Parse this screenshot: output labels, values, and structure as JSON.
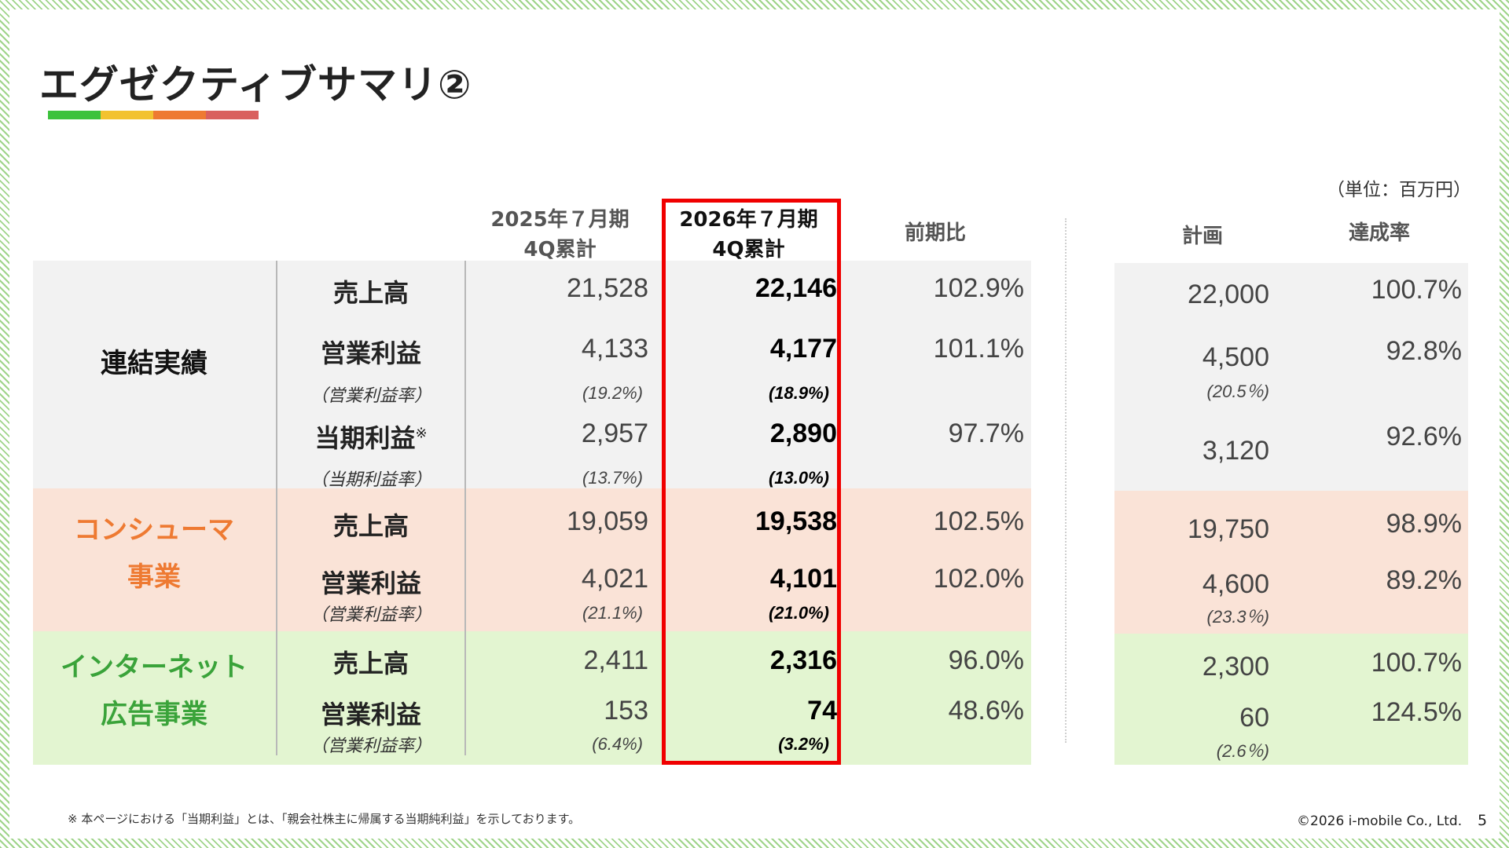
{
  "title": "エグゼクティブサマリ②",
  "title_bar_colors": [
    "#3cc23c",
    "#f2c230",
    "#ee7a32",
    "#d9605e"
  ],
  "unit": "（単位：百万円）",
  "headers": {
    "prev": [
      "2025年７月期",
      "4Q累計"
    ],
    "curr": [
      "2026年７月期",
      "4Q累計"
    ],
    "yoy": "前期比",
    "plan": "計画",
    "achieve": "達成率"
  },
  "colors": {
    "band_consolidated": "#f2f2f2",
    "band_consumer": "#fae3d7",
    "band_internet": "#e3f5d1",
    "seg_consolidated": "#111111",
    "seg_consumer": "#ee7a32",
    "seg_internet": "#3aa33a",
    "highlight_border": "#f00000"
  },
  "segments": {
    "consolidated": [
      "連結実績"
    ],
    "consumer": [
      "コンシューマ",
      "事業"
    ],
    "internet": [
      "インターネット",
      "広告事業"
    ]
  },
  "rows": [
    {
      "item": "売上高",
      "prev": "21,528",
      "curr": "22,146",
      "yoy": "102.9%",
      "plan": "22,000",
      "achieve": "100.7%"
    },
    {
      "item": "営業利益",
      "sub": "（営業利益率）",
      "prev": "4,133",
      "prev_pct": "(19.2%)",
      "curr": "4,177",
      "curr_pct": "(18.9%)",
      "yoy": "101.1%",
      "plan": "4,500",
      "plan_pct": "(20.5％)",
      "achieve": "92.8%"
    },
    {
      "item": "当期利益",
      "item_mark": "※",
      "sub": "（当期利益率）",
      "prev": "2,957",
      "prev_pct": "(13.7%)",
      "curr": "2,890",
      "curr_pct": "(13.0%)",
      "yoy": "97.7%",
      "plan": "3,120",
      "achieve": "92.6%"
    },
    {
      "item": "売上高",
      "prev": "19,059",
      "curr": "19,538",
      "yoy": "102.5%",
      "plan": "19,750",
      "achieve": "98.9%"
    },
    {
      "item": "営業利益",
      "sub": "（営業利益率）",
      "prev": "4,021",
      "prev_pct": "(21.1%)",
      "curr": "4,101",
      "curr_pct": "(21.0%)",
      "yoy": "102.0%",
      "plan": "4,600",
      "plan_pct": "(23.3％)",
      "achieve": "89.2%"
    },
    {
      "item": "売上高",
      "prev": "2,411",
      "curr": "2,316",
      "yoy": "96.0%",
      "plan": "2,300",
      "achieve": "100.7%"
    },
    {
      "item": "営業利益",
      "sub": "（営業利益率）",
      "prev": "153",
      "prev_pct": "(6.4%)",
      "curr": "74",
      "curr_pct": "(3.2%)",
      "yoy": "48.6%",
      "plan": "60",
      "plan_pct": "(2.6％)",
      "achieve": "124.5%"
    }
  ],
  "footnote": "※ 本ページにおける「当期利益」とは、「親会社株主に帰属する当期純利益」を示しております。",
  "copyright": "©2026 i-mobile Co., Ltd.",
  "page_number": "5"
}
